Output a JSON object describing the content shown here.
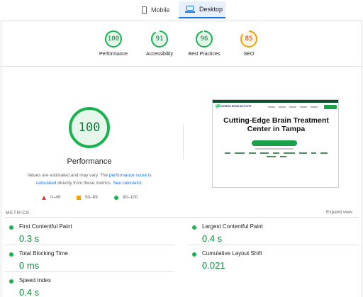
{
  "tabs": [
    {
      "label": "Mobile",
      "icon": "phone-icon",
      "selected": false
    },
    {
      "label": "Desktop",
      "icon": "laptop-icon",
      "selected": true
    }
  ],
  "summary": [
    {
      "score": "100",
      "label": "Performance",
      "fraction": 1.0
    },
    {
      "score": "91",
      "label": "Accessibility",
      "fraction": 0.91
    },
    {
      "score": "96",
      "label": "Best Practices",
      "fraction": 0.96
    },
    {
      "score": "85",
      "label": "SEO",
      "fraction": 0.85
    }
  ],
  "performance": {
    "score": "100",
    "fraction": 1.0,
    "title": "Performance",
    "note_pre": "Values are estimated and may vary. The ",
    "note_link1": "performance score is calculated",
    "note_mid": " directly from these metrics. ",
    "note_link2": "See calculator."
  },
  "legend": {
    "fail": "0–49",
    "average": "50–89",
    "pass": "90–100"
  },
  "screenshot": {
    "headline": "Cutting-Edge Brain Treatment Center in Tampa",
    "logo_mark": "gb",
    "logo_text": "GENESIS BRAIN INSTITUTE"
  },
  "metrics": {
    "header": "METRICS",
    "expand_label": "Expand view",
    "items": [
      {
        "label": "First Contentful Paint",
        "value": "0.3 s"
      },
      {
        "label": "Largest Contentful Paint",
        "value": "0.4 s"
      },
      {
        "label": "Total Blocking Time",
        "value": "0 ms"
      },
      {
        "label": "Cumulative Layout Shift",
        "value": "0.021"
      },
      {
        "label": "Speed Index",
        "value": "0.4 s"
      }
    ]
  },
  "colors": {
    "pass": "#0c7a3a",
    "pass_ring": "#18b34f",
    "pass_fill": "#e6f6eb",
    "average": "#c33300",
    "average_ring": "#f4a100",
    "average_fill": "#fff6e6",
    "fail": "#e53935",
    "accent": "#1a73e8"
  }
}
